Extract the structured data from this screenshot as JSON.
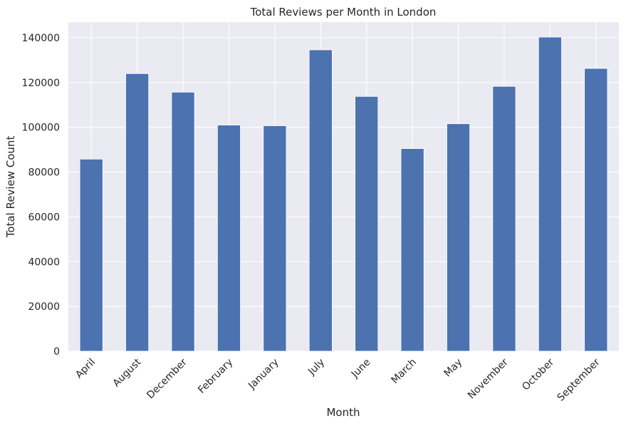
{
  "chart_data": {
    "type": "bar",
    "title": "Total Reviews per Month in London",
    "xlabel": "Month",
    "ylabel": "Total Review Count",
    "categories": [
      "April",
      "August",
      "December",
      "February",
      "January",
      "July",
      "June",
      "March",
      "May",
      "November",
      "October",
      "September"
    ],
    "values": [
      85800,
      124000,
      115700,
      101000,
      100700,
      134600,
      113800,
      90500,
      101600,
      118300,
      140300,
      126300
    ],
    "ylim": [
      0,
      147000
    ],
    "yticks": [
      0,
      20000,
      40000,
      60000,
      80000,
      100000,
      120000,
      140000
    ],
    "ytick_labels": [
      "0",
      "20000",
      "40000",
      "60000",
      "80000",
      "100000",
      "120000",
      "140000"
    ],
    "grid": true,
    "background_color": "#eaeaf2",
    "bar_color": "#4c72b0",
    "grid_color": "#ffffff"
  }
}
